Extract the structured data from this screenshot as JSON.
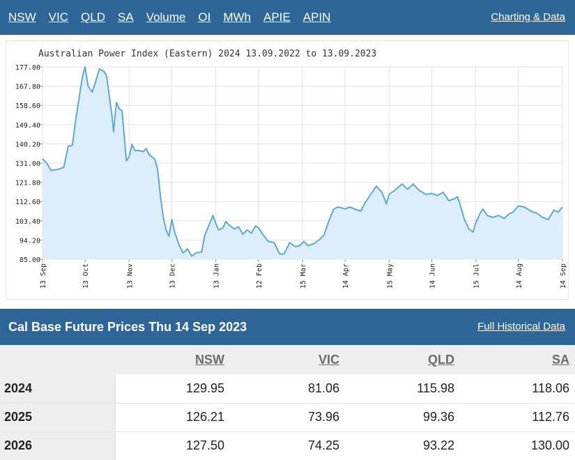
{
  "topnav": {
    "items": [
      "NSW",
      "VIC",
      "QLD",
      "SA",
      "Volume",
      "OI",
      "MWh",
      "APIE",
      "APIN"
    ],
    "charting_link": "Charting & Data"
  },
  "chart_data": {
    "type": "area",
    "title": "Australian Power Index (Eastern) 2024 13.09.2022 to 13.09.2023",
    "xlabel": "",
    "ylabel": "",
    "ylim": [
      85.0,
      177.0
    ],
    "yticks": [
      "177.00",
      "167.80",
      "158.60",
      "149.40",
      "140.20",
      "131.00",
      "121.80",
      "112.60",
      "103.40",
      "94.20",
      "85.00"
    ],
    "xticks": [
      {
        "label": "13 Sep",
        "x": "2022-09-13"
      },
      {
        "label": "13 Oct",
        "x": "2022-10-13"
      },
      {
        "label": "13 Nov",
        "x": "2022-11-13"
      },
      {
        "label": "13 Dec",
        "x": "2022-12-13"
      },
      {
        "label": "13 Jan",
        "x": "2023-01-13"
      },
      {
        "label": "12 Feb",
        "x": "2023-02-12"
      },
      {
        "label": "15 Mar",
        "x": "2023-03-15"
      },
      {
        "label": "14 Apr",
        "x": "2023-04-14"
      },
      {
        "label": "15 May",
        "x": "2023-05-15"
      },
      {
        "label": "14 Jun",
        "x": "2023-06-14"
      },
      {
        "label": "15 Jul",
        "x": "2023-07-15"
      },
      {
        "label": "14 Aug",
        "x": "2023-08-14"
      },
      {
        "label": "14 Sep",
        "x": "2023-09-14"
      }
    ],
    "grid": true,
    "line_color": "#5aa9d6",
    "fill_color": "#ddeefa",
    "series": [
      {
        "points": [
          [
            "2022-09-13",
            133.0
          ],
          [
            "2022-09-16",
            131.0
          ],
          [
            "2022-09-19",
            127.5
          ],
          [
            "2022-09-24",
            128.0
          ],
          [
            "2022-09-28",
            129.0
          ],
          [
            "2022-10-01",
            139.0
          ],
          [
            "2022-10-04",
            139.5
          ],
          [
            "2022-10-06",
            150.0
          ],
          [
            "2022-10-08",
            159.0
          ],
          [
            "2022-10-11",
            172.0
          ],
          [
            "2022-10-13",
            177.0
          ],
          [
            "2022-10-15",
            168.0
          ],
          [
            "2022-10-18",
            165.0
          ],
          [
            "2022-10-20",
            169.0
          ],
          [
            "2022-10-23",
            176.0
          ],
          [
            "2022-10-26",
            175.0
          ],
          [
            "2022-10-28",
            173.0
          ],
          [
            "2022-10-30",
            163.0
          ],
          [
            "2022-11-01",
            153.0
          ],
          [
            "2022-11-02",
            146.0
          ],
          [
            "2022-11-04",
            160.0
          ],
          [
            "2022-11-06",
            157.0
          ],
          [
            "2022-11-08",
            156.0
          ],
          [
            "2022-11-10",
            140.0
          ],
          [
            "2022-11-11",
            132.0
          ],
          [
            "2022-11-13",
            134.0
          ],
          [
            "2022-11-15",
            140.0
          ],
          [
            "2022-11-17",
            137.0
          ],
          [
            "2022-11-20",
            137.0
          ],
          [
            "2022-11-23",
            136.5
          ],
          [
            "2022-11-25",
            138.0
          ],
          [
            "2022-11-27",
            135.0
          ],
          [
            "2022-11-29",
            134.0
          ],
          [
            "2022-12-01",
            133.0
          ],
          [
            "2022-12-03",
            128.0
          ],
          [
            "2022-12-05",
            115.0
          ],
          [
            "2022-12-07",
            105.0
          ],
          [
            "2022-12-09",
            99.0
          ],
          [
            "2022-12-11",
            96.0
          ],
          [
            "2022-12-13",
            104.0
          ],
          [
            "2022-12-15",
            98.0
          ],
          [
            "2022-12-18",
            92.0
          ],
          [
            "2022-12-21",
            88.0
          ],
          [
            "2022-12-24",
            90.0
          ],
          [
            "2022-12-27",
            86.5
          ],
          [
            "2022-12-30",
            88.0
          ],
          [
            "2023-01-03",
            88.5
          ],
          [
            "2023-01-05",
            96.0
          ],
          [
            "2023-01-08",
            101.0
          ],
          [
            "2023-01-11",
            106.0
          ],
          [
            "2023-01-13",
            102.0
          ],
          [
            "2023-01-15",
            99.0
          ],
          [
            "2023-01-18",
            100.0
          ],
          [
            "2023-01-20",
            103.0
          ],
          [
            "2023-01-23",
            101.0
          ],
          [
            "2023-01-26",
            99.5
          ],
          [
            "2023-01-29",
            100.5
          ],
          [
            "2023-02-01",
            97.0
          ],
          [
            "2023-02-04",
            99.0
          ],
          [
            "2023-02-07",
            97.5
          ],
          [
            "2023-02-10",
            101.0
          ],
          [
            "2023-02-12",
            100.0
          ],
          [
            "2023-02-16",
            96.0
          ],
          [
            "2023-02-19",
            93.5
          ],
          [
            "2023-02-23",
            93.0
          ],
          [
            "2023-02-27",
            87.5
          ],
          [
            "2023-03-02",
            87.5
          ],
          [
            "2023-03-06",
            93.0
          ],
          [
            "2023-03-10",
            91.0
          ],
          [
            "2023-03-13",
            91.5
          ],
          [
            "2023-03-16",
            93.5
          ],
          [
            "2023-03-19",
            91.5
          ],
          [
            "2023-03-23",
            92.5
          ],
          [
            "2023-03-27",
            94.5
          ],
          [
            "2023-03-30",
            96.5
          ],
          [
            "2023-04-03",
            104.0
          ],
          [
            "2023-04-06",
            109.0
          ],
          [
            "2023-04-09",
            110.0
          ],
          [
            "2023-04-12",
            109.5
          ],
          [
            "2023-04-14",
            109.0
          ],
          [
            "2023-04-17",
            110.0
          ],
          [
            "2023-04-21",
            109.0
          ],
          [
            "2023-04-25",
            108.0
          ],
          [
            "2023-04-28",
            112.0
          ],
          [
            "2023-05-02",
            116.0
          ],
          [
            "2023-05-06",
            120.0
          ],
          [
            "2023-05-10",
            117.0
          ],
          [
            "2023-05-13",
            111.5
          ],
          [
            "2023-05-15",
            116.0
          ],
          [
            "2023-05-19",
            118.0
          ],
          [
            "2023-05-24",
            121.0
          ],
          [
            "2023-05-28",
            118.5
          ],
          [
            "2023-06-01",
            121.0
          ],
          [
            "2023-06-05",
            118.0
          ],
          [
            "2023-06-10",
            116.0
          ],
          [
            "2023-06-14",
            116.5
          ],
          [
            "2023-06-18",
            115.5
          ],
          [
            "2023-06-22",
            117.0
          ],
          [
            "2023-06-26",
            113.0
          ],
          [
            "2023-06-30",
            114.0
          ],
          [
            "2023-07-02",
            115.0
          ],
          [
            "2023-07-04",
            111.0
          ],
          [
            "2023-07-07",
            104.0
          ],
          [
            "2023-07-10",
            99.5
          ],
          [
            "2023-07-13",
            98.0
          ],
          [
            "2023-07-15",
            102.5
          ],
          [
            "2023-07-18",
            107.0
          ],
          [
            "2023-07-20",
            109.0
          ],
          [
            "2023-07-23",
            106.0
          ],
          [
            "2023-07-27",
            105.0
          ],
          [
            "2023-07-31",
            106.0
          ],
          [
            "2023-08-04",
            104.5
          ],
          [
            "2023-08-07",
            106.5
          ],
          [
            "2023-08-10",
            107.5
          ],
          [
            "2023-08-14",
            110.5
          ],
          [
            "2023-08-18",
            110.0
          ],
          [
            "2023-08-23",
            108.0
          ],
          [
            "2023-08-27",
            107.0
          ],
          [
            "2023-08-31",
            105.0
          ],
          [
            "2023-09-04",
            104.0
          ],
          [
            "2023-09-08",
            108.5
          ],
          [
            "2023-09-11",
            107.5
          ],
          [
            "2023-09-14",
            110.0
          ]
        ]
      }
    ]
  },
  "cal": {
    "title": "Cal Base Future Prices Thu 14 Sep 2023",
    "link": "Full Historical Data",
    "columns": [
      "NSW",
      "VIC",
      "QLD",
      "SA"
    ],
    "rows": [
      {
        "year": "2024",
        "values": [
          "129.95",
          "81.06",
          "115.98",
          "118.06"
        ]
      },
      {
        "year": "2025",
        "values": [
          "126.21",
          "73.96",
          "99.36",
          "112.76"
        ]
      },
      {
        "year": "2026",
        "values": [
          "127.50",
          "74.25",
          "93.22",
          "130.00"
        ]
      }
    ]
  }
}
